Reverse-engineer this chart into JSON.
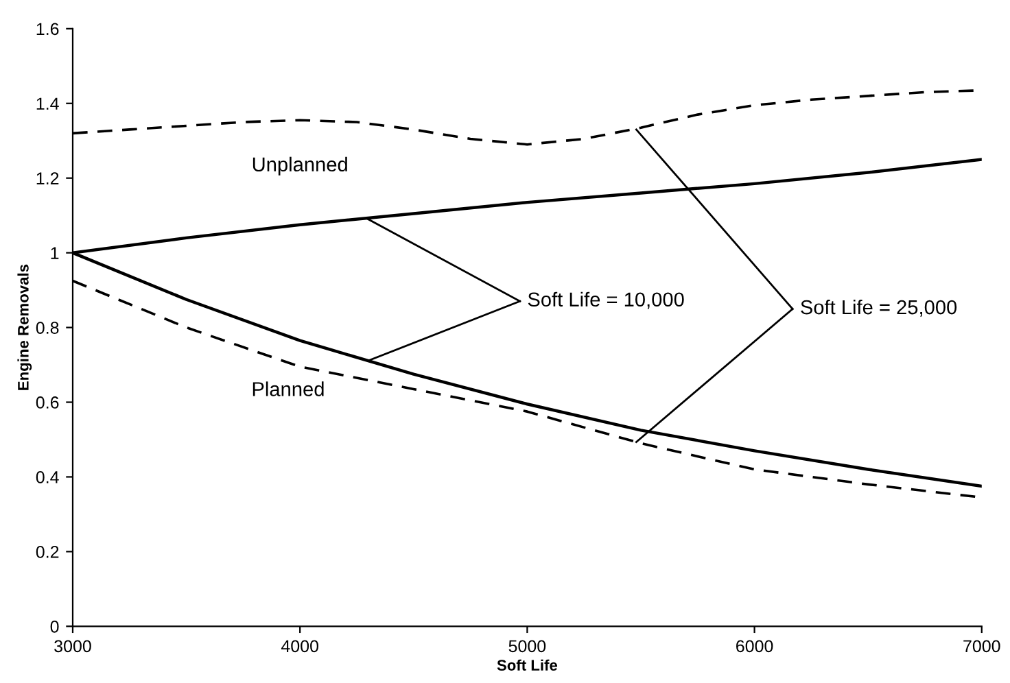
{
  "chart_data": {
    "type": "line",
    "xlabel": "Soft Life",
    "ylabel": "Engine Removals",
    "series": [
      {
        "color": "#000000",
        "line_style": "dashed",
        "x": [
          3000,
          3250,
          3500,
          3750,
          4000,
          4250,
          4500,
          4750,
          5000,
          5250,
          5500,
          5750,
          6000,
          6250,
          6500,
          6750,
          7000
        ],
        "values": [
          1.32,
          1.33,
          1.34,
          1.35,
          1.355,
          1.35,
          1.33,
          1.305,
          1.29,
          1.305,
          1.335,
          1.37,
          1.395,
          1.41,
          1.42,
          1.43,
          1.435
        ]
      },
      {
        "color": "#000000",
        "line_style": "solid",
        "x": [
          3000,
          3500,
          4000,
          4500,
          5000,
          5500,
          6000,
          6500,
          7000
        ],
        "values": [
          1.0,
          1.04,
          1.075,
          1.105,
          1.135,
          1.16,
          1.185,
          1.215,
          1.25
        ]
      },
      {
        "color": "#000000",
        "line_style": "solid",
        "x": [
          3000,
          3500,
          4000,
          4500,
          5000,
          5500,
          6000,
          6500,
          7000
        ],
        "values": [
          1.0,
          0.875,
          0.765,
          0.675,
          0.595,
          0.525,
          0.47,
          0.42,
          0.375
        ]
      },
      {
        "color": "#000000",
        "line_style": "dashed",
        "x": [
          3000,
          3500,
          4000,
          4500,
          5000,
          5500,
          6000,
          6500,
          7000
        ],
        "values": [
          0.925,
          0.8,
          0.695,
          0.635,
          0.575,
          0.49,
          0.42,
          0.38,
          0.345
        ]
      }
    ],
    "annotations": [
      "Unplanned",
      "Planned",
      {
        "text": "Soft Life = 10,000",
        "x": 4300,
        "y": 1.09
      },
      {
        "text": "Soft Life = 25,000",
        "x": 5480,
        "y": 1.33
      }
    ],
    "xlim": [
      3000,
      7000
    ],
    "xticks": [
      3000,
      4000,
      5000,
      6000,
      7000
    ],
    "ylim": [
      0,
      1.6
    ],
    "yticks": [
      0,
      {
        "value": 0.2,
        "label": "0.2"
      },
      {
        "value": 0.4,
        "label": "0.4"
      },
      {
        "value": 0.6,
        "label": "0.6"
      },
      {
        "value": 0.8,
        "label": "0.8"
      },
      1,
      {
        "value": 1.2,
        "label": "1.2"
      },
      {
        "value": 1.4,
        "label": "1.4"
      },
      {
        "value": 1.6,
        "label": "1.6"
      }
    ],
    "grid": false,
    "legend": false
  }
}
